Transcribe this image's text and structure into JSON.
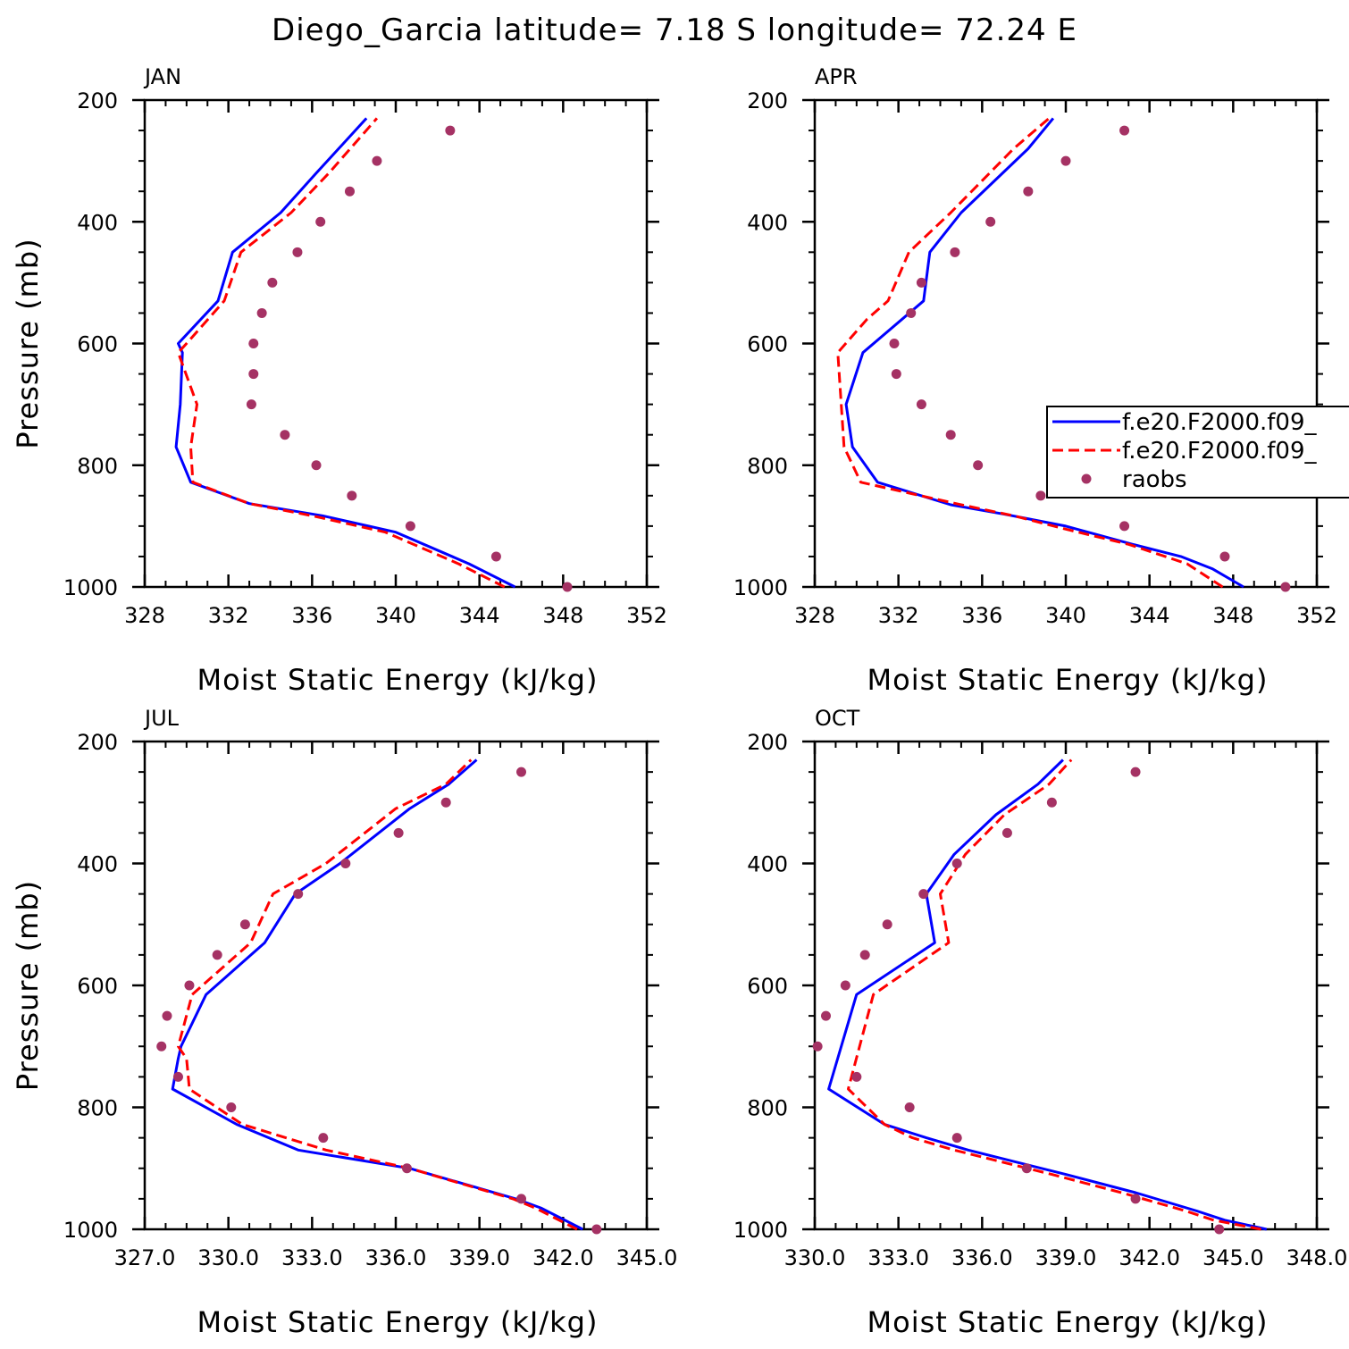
{
  "title": "Diego_Garcia  latitude= 7.18 S longitude= 72.24 E",
  "colors": {
    "model1": "#0000ff",
    "model2": "#ff0000",
    "obs": "#a53264"
  },
  "legend": {
    "entries": [
      {
        "label": "f.e20.F2000.f09_",
        "style": "solid",
        "color": "#0000ff"
      },
      {
        "label": "f.e20.F2000.f09_",
        "style": "dashed",
        "color": "#ff0000"
      },
      {
        "label": "raobs",
        "style": "dot",
        "color": "#a53264"
      }
    ],
    "location": "APR panel, right side, clipped at figure edge"
  },
  "chart_data": [
    {
      "type": "line",
      "panel": "JAN",
      "xlabel": "Moist Static Energy (kJ/kg)",
      "ylabel": "Pressure (mb)",
      "xlim": [
        328,
        352
      ],
      "ylim": [
        200,
        1000
      ],
      "y_inverted": true,
      "xticks": [
        328,
        332,
        336,
        340,
        344,
        348,
        352
      ],
      "xtick_labels": [
        "328",
        "332",
        "336",
        "340",
        "344",
        "348",
        "352"
      ],
      "yticks": [
        200,
        400,
        600,
        800,
        1000
      ],
      "ytick_labels": [
        "200",
        "400",
        "600",
        "800",
        "1000"
      ],
      "series": [
        {
          "name": "f.e20.F2000.f09_ (solid)",
          "color": "#0000ff",
          "style": "solid",
          "x": [
            345.7,
            343.5,
            340.0,
            336.5,
            333.0,
            330.2,
            329.5,
            329.7,
            329.8,
            329.6,
            331.5,
            332.2,
            334.5,
            336.2,
            338.6
          ],
          "y": [
            1000,
            962,
            910,
            883,
            863,
            828,
            770,
            700,
            615,
            600,
            530,
            450,
            385,
            320,
            230
          ]
        },
        {
          "name": "f.e20.F2000.f09_ (dashed)",
          "color": "#ff0000",
          "style": "dashed",
          "x": [
            345.2,
            343.0,
            339.5,
            336.0,
            333.0,
            330.3,
            330.2,
            330.5,
            329.6,
            330.0,
            331.8,
            332.6,
            335.0,
            336.8,
            339.1
          ],
          "y": [
            1000,
            962,
            910,
            883,
            863,
            828,
            770,
            700,
            615,
            600,
            530,
            450,
            385,
            320,
            230
          ]
        }
      ],
      "points": {
        "name": "raobs",
        "color": "#a53264",
        "x": [
          342.6,
          339.1,
          337.8,
          336.4,
          335.3,
          334.1,
          333.6,
          333.2,
          333.2,
          333.1,
          334.7,
          336.2,
          337.9,
          340.7,
          344.8,
          348.2
        ],
        "y": [
          250,
          300,
          350,
          400,
          450,
          500,
          550,
          600,
          650,
          700,
          750,
          800,
          850,
          900,
          950,
          1000
        ]
      }
    },
    {
      "type": "line",
      "panel": "APR",
      "xlabel": "Moist Static Energy (kJ/kg)",
      "ylabel": "",
      "xlim": [
        328,
        352
      ],
      "ylim": [
        200,
        1000
      ],
      "y_inverted": true,
      "xticks": [
        328,
        332,
        336,
        340,
        344,
        348,
        352
      ],
      "xtick_labels": [
        "328",
        "332",
        "336",
        "340",
        "344",
        "348",
        "352"
      ],
      "yticks": [
        200,
        400,
        600,
        800,
        1000
      ],
      "ytick_labels": [
        "200",
        "400",
        "600",
        "800",
        "1000"
      ],
      "series": [
        {
          "name": "f.e20.F2000.f09_ (solid)",
          "color": "#0000ff",
          "style": "solid",
          "x": [
            348.5,
            347.0,
            345.5,
            343.2,
            340.0,
            337.0,
            334.5,
            331.0,
            329.8,
            329.5,
            330.3,
            333.2,
            333.5,
            335.0,
            338.2,
            339.4
          ],
          "y": [
            1000,
            970,
            950,
            930,
            900,
            880,
            865,
            828,
            770,
            700,
            615,
            530,
            450,
            385,
            280,
            230
          ]
        },
        {
          "name": "f.e20.F2000.f09_ (dashed)",
          "color": "#ff0000",
          "style": "dashed",
          "x": [
            347.5,
            345.8,
            343.0,
            340.0,
            337.5,
            335.0,
            330.2,
            329.4,
            329.1,
            330.5,
            331.5,
            332.5,
            334.5,
            337.5,
            339.2
          ],
          "y": [
            1000,
            962,
            930,
            905,
            883,
            865,
            828,
            770,
            615,
            560,
            530,
            450,
            385,
            280,
            230
          ]
        }
      ],
      "points": {
        "name": "raobs",
        "color": "#a53264",
        "x": [
          342.8,
          340.0,
          338.2,
          336.4,
          334.7,
          333.1,
          332.6,
          331.8,
          331.9,
          333.1,
          334.5,
          335.8,
          338.8,
          342.8,
          347.6,
          350.5
        ],
        "y": [
          250,
          300,
          350,
          400,
          450,
          500,
          550,
          600,
          650,
          700,
          750,
          800,
          850,
          900,
          950,
          1000
        ]
      }
    },
    {
      "type": "line",
      "panel": "JUL",
      "xlabel": "Moist Static Energy (kJ/kg)",
      "ylabel": "Pressure (mb)",
      "xlim": [
        327,
        345
      ],
      "ylim": [
        200,
        1000
      ],
      "y_inverted": true,
      "xticks": [
        327,
        330,
        333,
        336,
        339,
        342,
        345
      ],
      "xtick_labels": [
        "327.0",
        "330.0",
        "333.0",
        "336.0",
        "339.0",
        "342.0",
        "345.0"
      ],
      "yticks": [
        200,
        400,
        600,
        800,
        1000
      ],
      "ytick_labels": [
        "200",
        "400",
        "600",
        "800",
        "1000"
      ],
      "series": [
        {
          "name": "f.e20.F2000.f09_ (solid)",
          "color": "#0000ff",
          "style": "solid",
          "x": [
            342.7,
            341.2,
            340.3,
            336.5,
            332.5,
            330.3,
            328.0,
            328.2,
            328.3,
            329.2,
            331.3,
            332.4,
            334.0,
            336.5,
            337.9,
            338.9
          ],
          "y": [
            1000,
            965,
            950,
            900,
            870,
            828,
            770,
            720,
            700,
            615,
            530,
            450,
            400,
            310,
            270,
            230
          ]
        },
        {
          "name": "f.e20.F2000.f09_ (dashed)",
          "color": "#ff0000",
          "style": "dashed",
          "x": [
            342.5,
            341.0,
            340.2,
            336.5,
            333.5,
            330.5,
            328.6,
            328.5,
            328.2,
            328.7,
            330.8,
            331.6,
            333.5,
            336.0,
            337.8,
            338.7
          ],
          "y": [
            1000,
            965,
            950,
            900,
            870,
            828,
            770,
            720,
            700,
            615,
            530,
            450,
            400,
            310,
            270,
            230
          ]
        }
      ],
      "points": {
        "name": "raobs",
        "color": "#a53264",
        "x": [
          340.5,
          337.8,
          336.1,
          334.2,
          332.5,
          330.6,
          329.6,
          328.6,
          327.8,
          327.6,
          328.2,
          330.1,
          333.4,
          336.4,
          340.5,
          343.2
        ],
        "y": [
          250,
          300,
          350,
          400,
          450,
          500,
          550,
          600,
          650,
          700,
          750,
          800,
          850,
          900,
          950,
          1000
        ]
      }
    },
    {
      "type": "line",
      "panel": "OCT",
      "xlabel": "Moist Static Energy (kJ/kg)",
      "ylabel": "",
      "xlim": [
        330,
        348
      ],
      "ylim": [
        200,
        1000
      ],
      "y_inverted": true,
      "xticks": [
        330,
        333,
        336,
        339,
        342,
        345,
        348
      ],
      "xtick_labels": [
        "330.0",
        "333.0",
        "336.0",
        "339.0",
        "342.0",
        "345.0",
        "348.0"
      ],
      "yticks": [
        200,
        400,
        600,
        800,
        1000
      ],
      "ytick_labels": [
        "200",
        "400",
        "600",
        "800",
        "1000"
      ],
      "series": [
        {
          "name": "f.e20.F2000.f09_ (solid)",
          "color": "#0000ff",
          "style": "solid",
          "x": [
            346.2,
            344.7,
            343.7,
            341.5,
            339.0,
            335.5,
            334.0,
            332.5,
            330.5,
            331.5,
            334.3,
            334.0,
            335.0,
            336.5,
            338.0,
            338.9
          ],
          "y": [
            1000,
            985,
            970,
            940,
            910,
            870,
            850,
            828,
            770,
            615,
            530,
            450,
            385,
            320,
            270,
            230
          ]
        },
        {
          "name": "f.e20.F2000.f09_ (dashed)",
          "color": "#ff0000",
          "style": "dashed",
          "x": [
            346.0,
            344.3,
            343.3,
            341.0,
            338.5,
            335.0,
            333.5,
            332.5,
            331.2,
            332.1,
            334.8,
            334.5,
            335.4,
            336.8,
            338.4,
            339.2
          ],
          "y": [
            1000,
            985,
            970,
            940,
            910,
            870,
            850,
            828,
            770,
            615,
            530,
            450,
            385,
            320,
            270,
            230
          ]
        }
      ],
      "points": {
        "name": "raobs",
        "color": "#a53264",
        "x": [
          341.5,
          338.5,
          336.9,
          335.1,
          333.9,
          332.6,
          331.8,
          331.1,
          330.4,
          330.1,
          331.5,
          333.4,
          335.1,
          337.6,
          341.5,
          344.5
        ],
        "y": [
          250,
          300,
          350,
          400,
          450,
          500,
          550,
          600,
          650,
          700,
          750,
          800,
          850,
          900,
          950,
          1000
        ]
      }
    }
  ]
}
